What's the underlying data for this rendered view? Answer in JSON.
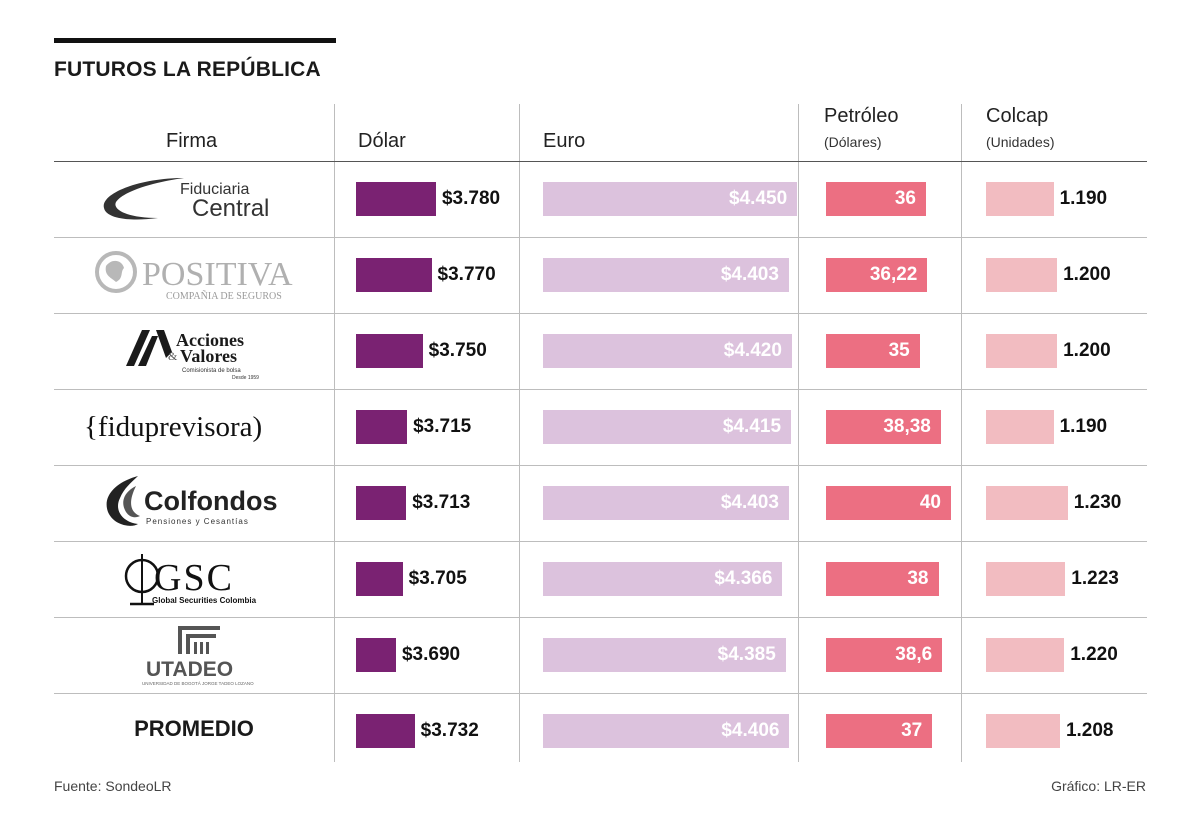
{
  "title": "FUTUROS LA REPÚBLICA",
  "headers": {
    "firma": "Firma",
    "dolar": "Dólar",
    "euro": "Euro",
    "petroleo": "Petróleo",
    "petroleo_sub": "(Dólares)",
    "colcap": "Colcap",
    "colcap_sub": "(Unidades)"
  },
  "chart_data": {
    "type": "table",
    "columns": [
      "Firma",
      "Dólar",
      "Euro",
      "Petróleo (Dólares)",
      "Colcap (Unidades)"
    ],
    "rows": [
      {
        "firma": "Fiduciaria Central",
        "dolar": 3780,
        "dolar_label": "$3.780",
        "euro": 4450,
        "euro_label": "$4.450",
        "petroleo": 36,
        "petroleo_label": "36",
        "colcap": 1190,
        "colcap_label": "1.190"
      },
      {
        "firma": "Positiva Compañía de Seguros",
        "dolar": 3770,
        "dolar_label": "$3.770",
        "euro": 4403,
        "euro_label": "$4.403",
        "petroleo": 36.22,
        "petroleo_label": "36,22",
        "colcap": 1200,
        "colcap_label": "1.200"
      },
      {
        "firma": "Acciones & Valores",
        "dolar": 3750,
        "dolar_label": "$3.750",
        "euro": 4420,
        "euro_label": "$4.420",
        "petroleo": 35,
        "petroleo_label": "35",
        "colcap": 1200,
        "colcap_label": "1.200"
      },
      {
        "firma": "fiduprevisora",
        "dolar": 3715,
        "dolar_label": "$3.715",
        "euro": 4415,
        "euro_label": "$4.415",
        "petroleo": 38.38,
        "petroleo_label": "38,38",
        "colcap": 1190,
        "colcap_label": "1.190"
      },
      {
        "firma": "Colfondos",
        "dolar": 3713,
        "dolar_label": "$3.713",
        "euro": 4403,
        "euro_label": "$4.403",
        "petroleo": 40,
        "petroleo_label": "40",
        "colcap": 1230,
        "colcap_label": "1.230"
      },
      {
        "firma": "GSC Global Securities Colombia",
        "dolar": 3705,
        "dolar_label": "$3.705",
        "euro": 4366,
        "euro_label": "$4.366",
        "petroleo": 38,
        "petroleo_label": "38",
        "colcap": 1223,
        "colcap_label": "1.223"
      },
      {
        "firma": "UTADEO",
        "dolar": 3690,
        "dolar_label": "$3.690",
        "euro": 4385,
        "euro_label": "$4.385",
        "petroleo": 38.6,
        "petroleo_label": "38,6",
        "colcap": 1220,
        "colcap_label": "1.220"
      },
      {
        "firma": "PROMEDIO",
        "dolar": 3732,
        "dolar_label": "$3.732",
        "euro": 4406,
        "euro_label": "$4.406",
        "petroleo": 37,
        "petroleo_label": "37",
        "colcap": 1208,
        "colcap_label": "1.208"
      }
    ]
  },
  "logos": {
    "fiduciaria": {
      "line1": "Fiduciaria",
      "line2": "Central"
    },
    "positiva": {
      "main": "POSITIVA",
      "sub": "COMPAÑIA DE SEGUROS"
    },
    "acciones": {
      "line1": "Acciones",
      "amp": "&",
      "line2": "Valores",
      "sub": "Comisionista de bolsa",
      "since": "Desde 1959"
    },
    "fiduprevisora": {
      "text": "{fiduprevisora)"
    },
    "colfondos": {
      "main": "Colfondos",
      "sub": "Pensiones y Cesantías"
    },
    "gsc": {
      "main": "GSC",
      "sub": "Global Securities Colombia"
    },
    "utadeo": {
      "main": "UTADEO",
      "sub": "UNIVERSIDAD DE BOGOTÁ JORGE TADEO LOZANO"
    }
  },
  "colors": {
    "dolar": "#7a2272",
    "euro": "#dcc2dd",
    "petroleo": "#ec6f82",
    "colcap": "#f2bcc1"
  },
  "footer": {
    "source": "Fuente: SondeoLR",
    "credit": "Gráfico: LR-ER"
  }
}
